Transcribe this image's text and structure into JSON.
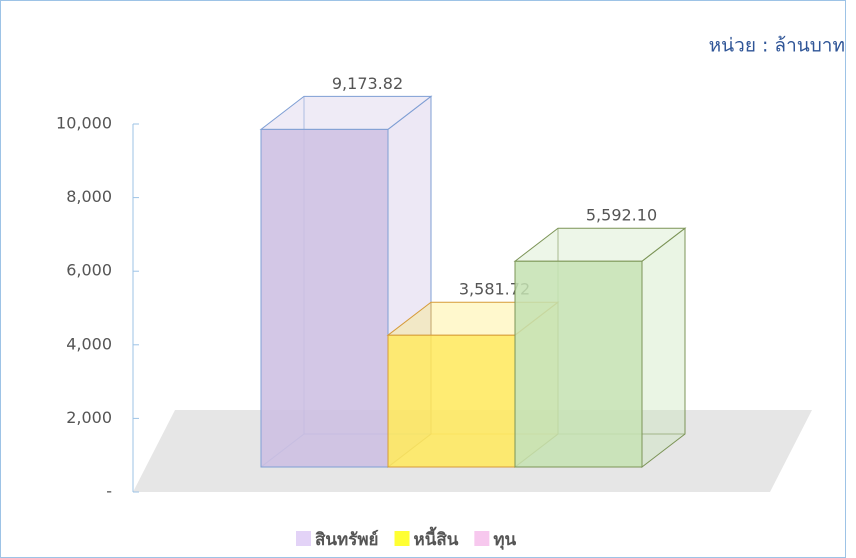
{
  "chart_data": {
    "type": "bar3d",
    "unit_label": "หน่วย : ล้านบาท",
    "series": [
      {
        "name": "สินทรัพย์",
        "color": "#cbbde2",
        "stroke": "#7f9fd4",
        "legend_color": "#e3d3f7",
        "values": [
          9173.82
        ],
        "value_labels": [
          "9,173.82"
        ]
      },
      {
        "name": "หนี้สิน",
        "color": "#ffe95a",
        "stroke": "#d69b3a",
        "legend_color": "#ffff33",
        "values": [
          3581.72
        ],
        "value_labels": [
          "3,581.72"
        ]
      },
      {
        "name": "ทุน",
        "color": "#c4e2b2",
        "stroke": "#7c9457",
        "legend_color": "#f7c8ee",
        "values": [
          5592.1
        ],
        "value_labels": [
          "5,592.10"
        ]
      }
    ],
    "ylim": [
      0,
      10000
    ],
    "yticks": [
      {
        "value": 0,
        "label": "-"
      },
      {
        "value": 2000,
        "label": "2,000"
      },
      {
        "value": 4000,
        "label": "4,000"
      },
      {
        "value": 6000,
        "label": "6,000"
      },
      {
        "value": 8000,
        "label": "8,000"
      },
      {
        "value": 10000,
        "label": "10,000"
      }
    ]
  }
}
